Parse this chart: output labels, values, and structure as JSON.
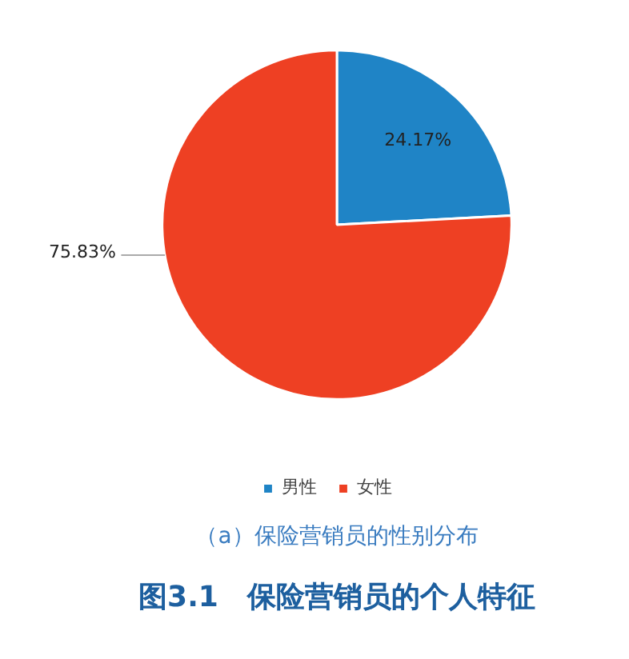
{
  "chart_data": {
    "type": "pie",
    "title": "图3.1　保险营销员的个人特征",
    "subtitle": "（a）保险营销员的性别分布",
    "categories": [
      "男性",
      "女性"
    ],
    "values": [
      24.17,
      75.83
    ],
    "colors": [
      "#1f84c6",
      "#ee4023"
    ],
    "value_labels": [
      "24.17%",
      "75.83%"
    ],
    "legend": "bottom"
  }
}
